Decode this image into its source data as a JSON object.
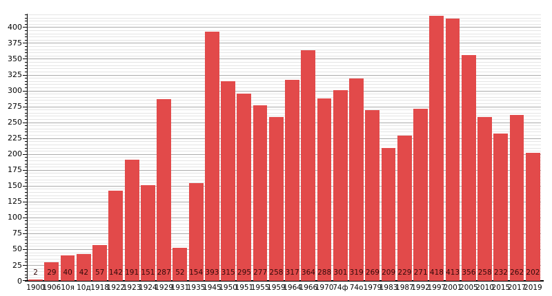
{
  "chart_data": {
    "type": "bar",
    "title": "",
    "xlabel": "",
    "ylabel": "",
    "categories": [
      "1900",
      "1906",
      "10я",
      "10д",
      "1918",
      "1922",
      "1923",
      "1924",
      "1929",
      "1931",
      "1935",
      "1945",
      "1950",
      "1951",
      "1955",
      "1959",
      "1964",
      "1966",
      "1970",
      "74ф",
      "74о",
      "1979",
      "1983",
      "1987",
      "1992",
      "1997",
      "2001",
      "2005",
      "2010",
      "2015",
      "2017",
      "2019"
    ],
    "values": [
      2,
      29,
      40,
      42,
      57,
      142,
      191,
      151,
      287,
      52,
      154,
      393,
      315,
      295,
      277,
      258,
      317,
      364,
      288,
      301,
      319,
      269,
      209,
      229,
      271,
      418,
      413,
      356,
      258,
      232,
      262,
      202
    ],
    "ylim": [
      0,
      421
    ],
    "y_major_step": 25,
    "y_minor_step": 5,
    "y_max_labeled_tick": 400,
    "grid": "major-and-minor",
    "legend": "none",
    "bar_color": "#e24a4a",
    "bar_value_label_color": "#330a0a",
    "axis_color": "#000000",
    "major_grid_color": "#ababab",
    "minor_grid_color": "#e4e4e4",
    "tick_label_color": "#000000",
    "background_color": "#ffffff"
  }
}
